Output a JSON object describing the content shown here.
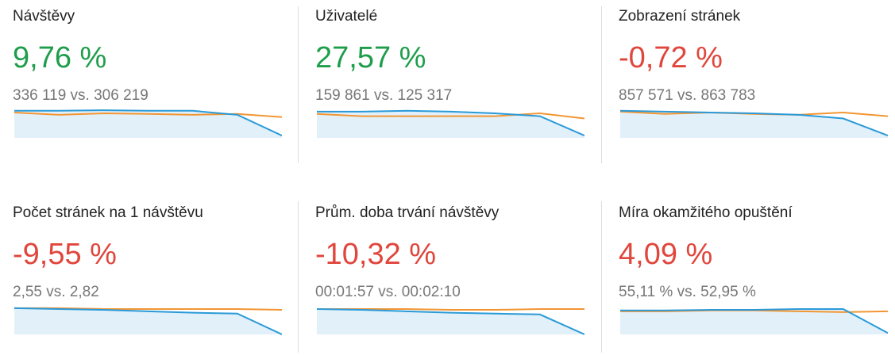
{
  "cards": [
    {
      "title": "Návštěvy",
      "change": "9,76 %",
      "color": "#1e9e4a",
      "comparison": "336 119 vs. 306 219",
      "current": [
        95,
        95,
        97,
        95,
        95,
        81,
        8
      ],
      "previous": [
        89,
        81,
        86,
        84,
        81,
        84,
        73
      ]
    },
    {
      "title": "Uživatelé",
      "change": "27,57 %",
      "color": "#1e9e4a",
      "comparison": "159 861 vs. 125 317",
      "current": [
        92,
        92,
        95,
        92,
        86,
        76,
        8
      ],
      "previous": [
        84,
        76,
        76,
        76,
        76,
        86,
        68
      ]
    },
    {
      "title": "Zobrazení stránek",
      "change": "-0,72 %",
      "color": "#e0463c",
      "comparison": "857 571 vs. 863 783",
      "current": [
        95,
        92,
        89,
        86,
        81,
        68,
        8
      ],
      "previous": [
        92,
        84,
        89,
        84,
        81,
        89,
        76
      ]
    },
    {
      "title": "Počet stránek na 1 návštěvu",
      "change": "-9,55 %",
      "color": "#e0463c",
      "comparison": "2,55 vs. 2,82",
      "current": [
        92,
        89,
        86,
        81,
        76,
        73,
        0
      ],
      "previous": [
        92,
        92,
        89,
        89,
        89,
        89,
        86
      ]
    },
    {
      "title": "Prům. doba trvání návštěvy",
      "change": "-10,32 %",
      "color": "#e0463c",
      "comparison": "00:01:57 vs. 00:02:10",
      "current": [
        89,
        86,
        81,
        76,
        73,
        70,
        0
      ],
      "previous": [
        89,
        89,
        89,
        86,
        86,
        89,
        89
      ]
    },
    {
      "title": "Míra okamžitého opuštění",
      "change": "4,09 %",
      "color": "#e0463c",
      "comparison": "55,11 % vs. 52,95 %",
      "current": [
        84,
        84,
        86,
        86,
        89,
        89,
        5
      ],
      "previous": [
        81,
        81,
        84,
        84,
        81,
        78,
        81
      ]
    }
  ],
  "ylim": [
    0,
    100
  ],
  "current_color": "#2a9ad8",
  "previous_color": "#f29634",
  "area_color": "#e2f0fa"
}
